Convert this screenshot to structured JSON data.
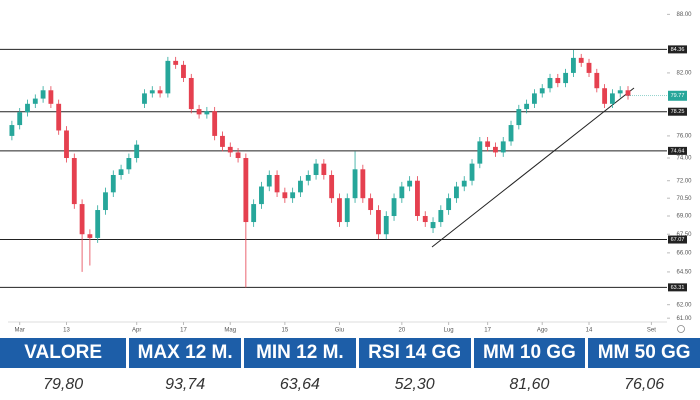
{
  "chart_data": {
    "type": "candlestick",
    "log_scale": true,
    "up_color": "#26a69a",
    "down_color": "#e5404f",
    "ylim": [
      60.5,
      89
    ],
    "xlim": [
      -0.5,
      84
    ],
    "yticks": [
      {
        "value": 88,
        "label": "88.00"
      },
      {
        "value": 82,
        "label": "82.00"
      },
      {
        "value": 76,
        "label": "76.00"
      },
      {
        "value": 74,
        "label": "74.00"
      },
      {
        "value": 72,
        "label": "72.00"
      },
      {
        "value": 70.5,
        "label": "70.50"
      },
      {
        "value": 69,
        "label": "69.00"
      },
      {
        "value": 67.5,
        "label": "67.50"
      },
      {
        "value": 66,
        "label": "66.00"
      },
      {
        "value": 64.5,
        "label": "64.50"
      },
      {
        "value": 62,
        "label": "62.00"
      },
      {
        "value": 61,
        "label": "61.00"
      }
    ],
    "xticks": [
      {
        "value": 1,
        "label": "Mar"
      },
      {
        "value": 7,
        "label": "13"
      },
      {
        "value": 16,
        "label": "Apr"
      },
      {
        "value": 22,
        "label": "17"
      },
      {
        "value": 28,
        "label": "Mag"
      },
      {
        "value": 35,
        "label": "15"
      },
      {
        "value": 42,
        "label": "Giu"
      },
      {
        "value": 50,
        "label": "20"
      },
      {
        "value": 56,
        "label": "Lug"
      },
      {
        "value": 61,
        "label": "17"
      },
      {
        "value": 68,
        "label": "Ago"
      },
      {
        "value": 74,
        "label": "14"
      },
      {
        "value": 82,
        "label": "Set"
      }
    ],
    "levels": [
      84.36,
      78.25,
      74.64,
      67.07,
      63.31
    ],
    "open": [
      76.0,
      77.0,
      78.2,
      79.0,
      79.5,
      80.3,
      79.0,
      76.5,
      74.0,
      70.0,
      67.5,
      67.2,
      69.5,
      71.0,
      72.5,
      73.0,
      74.0,
      79.0,
      80.0,
      80.3,
      80.0,
      83.2,
      82.8,
      81.5,
      78.5,
      78.0,
      78.3,
      76.0,
      75.0,
      74.5,
      74.0,
      68.5,
      70.0,
      71.5,
      72.5,
      71.0,
      70.5,
      71.0,
      72.0,
      72.5,
      73.5,
      72.5,
      70.5,
      68.5,
      70.5,
      73.0,
      70.5,
      69.5,
      67.5,
      69.0,
      70.5,
      71.5,
      72.0,
      69.0,
      68.0,
      68.5,
      69.5,
      70.5,
      71.5,
      72.0,
      73.5,
      75.5,
      75.0,
      74.5,
      75.5,
      77.0,
      78.5,
      79.0,
      80.0,
      80.5,
      81.5,
      81.0,
      82.0,
      83.5,
      83.0,
      82.0,
      80.5,
      79.0,
      80.0,
      80.3
    ],
    "high": [
      77.4,
      78.6,
      79.4,
      79.9,
      80.7,
      80.7,
      79.4,
      76.9,
      74.4,
      70.4,
      67.9,
      69.9,
      71.4,
      72.9,
      73.4,
      74.4,
      75.6,
      80.4,
      80.7,
      80.7,
      83.6,
      83.6,
      83.2,
      81.9,
      78.9,
      78.7,
      78.7,
      76.4,
      75.4,
      74.9,
      74.4,
      70.4,
      71.9,
      72.9,
      72.9,
      71.4,
      71.4,
      72.4,
      72.9,
      73.9,
      73.9,
      72.9,
      70.9,
      70.9,
      74.6,
      73.4,
      70.9,
      69.9,
      69.4,
      70.9,
      71.9,
      72.4,
      72.4,
      69.4,
      68.9,
      69.9,
      70.9,
      71.9,
      72.4,
      73.9,
      75.9,
      75.9,
      75.4,
      75.9,
      77.4,
      78.9,
      79.4,
      80.4,
      80.9,
      81.9,
      81.9,
      82.4,
      84.3,
      83.9,
      83.4,
      82.4,
      80.9,
      80.4,
      80.7,
      80.7
    ],
    "low": [
      75.6,
      76.6,
      77.8,
      78.6,
      79.1,
      78.6,
      76.1,
      73.6,
      69.6,
      64.5,
      65.0,
      66.8,
      69.1,
      70.6,
      72.1,
      72.6,
      73.6,
      78.6,
      79.6,
      79.6,
      79.6,
      82.4,
      81.1,
      78.1,
      77.6,
      77.6,
      75.6,
      74.6,
      74.1,
      73.6,
      63.3,
      68.1,
      69.6,
      71.1,
      70.6,
      70.1,
      70.1,
      70.6,
      71.6,
      72.1,
      72.1,
      70.1,
      68.1,
      68.1,
      70.1,
      70.1,
      69.1,
      67.1,
      67.1,
      68.6,
      70.1,
      71.1,
      68.6,
      68.1,
      67.6,
      68.1,
      69.1,
      70.1,
      71.1,
      71.6,
      73.1,
      74.6,
      74.1,
      74.1,
      75.1,
      76.6,
      78.1,
      78.6,
      79.6,
      80.1,
      80.6,
      80.6,
      81.6,
      82.6,
      81.6,
      80.1,
      78.6,
      78.6,
      79.6,
      79.4
    ],
    "close": [
      77.0,
      78.2,
      79.0,
      79.5,
      80.3,
      79.0,
      76.5,
      74.0,
      70.0,
      67.5,
      67.2,
      69.5,
      71.0,
      72.5,
      73.0,
      74.0,
      75.2,
      80.0,
      80.3,
      80.0,
      83.2,
      82.8,
      81.5,
      78.5,
      78.0,
      78.3,
      76.0,
      75.0,
      74.5,
      74.0,
      68.5,
      70.0,
      71.5,
      72.5,
      71.0,
      70.5,
      71.0,
      72.0,
      72.5,
      73.5,
      72.5,
      70.5,
      68.5,
      70.5,
      73.0,
      70.5,
      69.5,
      67.5,
      69.0,
      70.5,
      71.5,
      72.0,
      69.0,
      68.5,
      68.5,
      69.5,
      70.5,
      71.5,
      72.0,
      73.5,
      75.5,
      75.0,
      74.5,
      75.5,
      77.0,
      78.5,
      79.0,
      80.0,
      80.5,
      81.5,
      81.0,
      82.0,
      83.5,
      83.0,
      82.0,
      80.5,
      79.0,
      80.0,
      80.3,
      79.77
    ]
  },
  "table": {
    "headers": [
      "VALORE",
      "MAX 12 M.",
      "MIN 12 M.",
      "RSI 14 GG",
      "MM 10 GG",
      "MM 50 GG"
    ],
    "values": [
      "79,80",
      "93,74",
      "63,64",
      "52,30",
      "81,60",
      "76,06"
    ]
  }
}
